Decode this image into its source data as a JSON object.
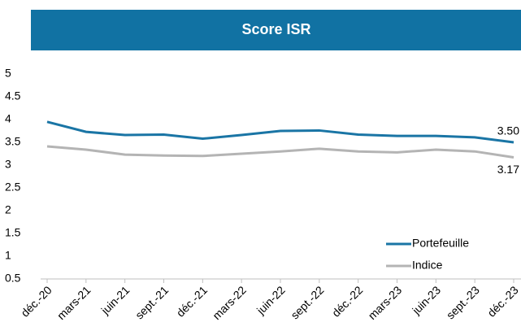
{
  "chart_data": {
    "type": "line",
    "title": "Score ISR",
    "categories": [
      "déc.-20",
      "mars-21",
      "juin-21",
      "sept.-21",
      "déc.-21",
      "mars-22",
      "juin-22",
      "sept.-22",
      "déc.-22",
      "mars-23",
      "juin-23",
      "sept.-23",
      "déc.-23"
    ],
    "series": [
      {
        "name": "Portefeuille",
        "color": "#1a75a5",
        "values": [
          3.95,
          3.73,
          3.66,
          3.67,
          3.58,
          3.66,
          3.75,
          3.76,
          3.67,
          3.64,
          3.64,
          3.61,
          3.5
        ],
        "value_labels": [
          null,
          null,
          null,
          null,
          null,
          null,
          null,
          null,
          null,
          null,
          null,
          null,
          "3.50"
        ]
      },
      {
        "name": "Indice",
        "color": "#b4b4b4",
        "values": [
          3.41,
          3.34,
          3.23,
          3.21,
          3.2,
          3.25,
          3.3,
          3.36,
          3.3,
          3.28,
          3.34,
          3.3,
          3.17
        ],
        "value_labels": [
          null,
          null,
          null,
          null,
          null,
          null,
          null,
          null,
          null,
          null,
          null,
          null,
          "3.17"
        ]
      }
    ],
    "ylim": [
      0.5,
      5
    ],
    "yticks": [
      0.5,
      1,
      1.5,
      2,
      2.5,
      3,
      3.5,
      4,
      4.5,
      5
    ],
    "grid": false,
    "legend": "lower right"
  }
}
